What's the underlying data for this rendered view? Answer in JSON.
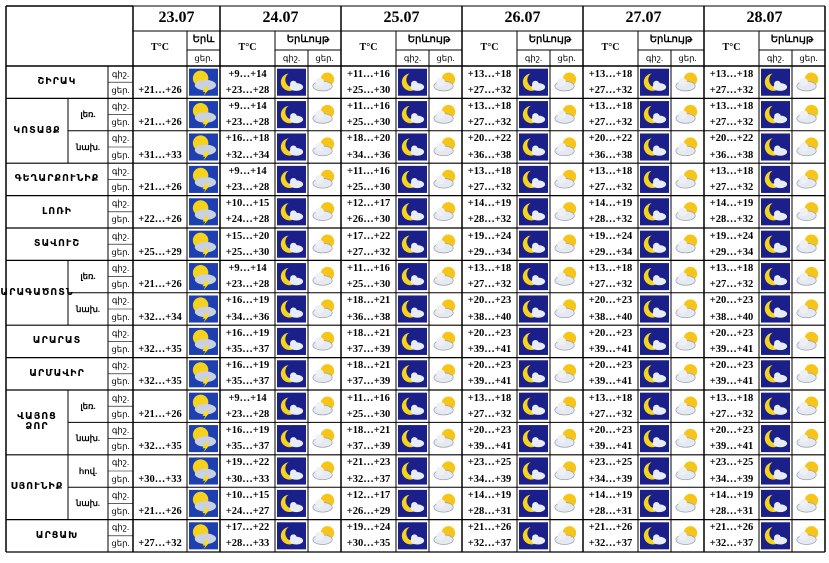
{
  "header": {
    "dates": [
      "23.07",
      "24.07",
      "25.07",
      "26.07",
      "27.07",
      "28.07"
    ],
    "temp_label": "T°C",
    "phenomenon_short": "Երև",
    "phenomenon": "Երևույթ",
    "night": "գիշ.",
    "day": "ցեր."
  },
  "regions": [
    {
      "name": "ՇԻՐԱԿ",
      "rows": [
        {
          "first": "+21…+26",
          "days": [
            {
              "night": "+9…+14",
              "day": "+23…+28"
            },
            {
              "night": "+11…+16",
              "day": "+25…+30"
            },
            {
              "night": "+13…+18",
              "day": "+27…+32"
            },
            {
              "night": "+13…+18",
              "day": "+27…+32"
            },
            {
              "night": "+13…+18",
              "day": "+27…+32"
            }
          ]
        }
      ]
    },
    {
      "name": "ԿՈՏԱՅՔ",
      "rows": [
        {
          "zone": "լեռ.",
          "first": "+21…+26",
          "days": [
            {
              "night": "+9…+14",
              "day": "+23…+28"
            },
            {
              "night": "+11…+16",
              "day": "+25…+30"
            },
            {
              "night": "+13…+18",
              "day": "+27…+32"
            },
            {
              "night": "+13…+18",
              "day": "+27…+32"
            },
            {
              "night": "+13…+18",
              "day": "+27…+32"
            }
          ]
        },
        {
          "zone": "նախ.",
          "first": "+31…+33",
          "days": [
            {
              "night": "+16…+18",
              "day": "+32…+34"
            },
            {
              "night": "+18…+20",
              "day": "+34…+36"
            },
            {
              "night": "+20…+22",
              "day": "+36…+38"
            },
            {
              "night": "+20…+22",
              "day": "+36…+38"
            },
            {
              "night": "+20…+22",
              "day": "+36…+38"
            }
          ]
        }
      ]
    },
    {
      "name": "ԳԵՂԱՐՔՈՒՆԻՔ",
      "rows": [
        {
          "first": "+21…+26",
          "days": [
            {
              "night": "+9…+14",
              "day": "+23…+28"
            },
            {
              "night": "+11…+16",
              "day": "+25…+30"
            },
            {
              "night": "+13…+18",
              "day": "+27…+32"
            },
            {
              "night": "+13…+18",
              "day": "+27…+32"
            },
            {
              "night": "+13…+18",
              "day": "+27…+32"
            }
          ]
        }
      ]
    },
    {
      "name": "ԼՈՌԻ",
      "rows": [
        {
          "first": "+22…+26",
          "days": [
            {
              "night": "+10…+15",
              "day": "+24…+28"
            },
            {
              "night": "+12…+17",
              "day": "+26…+30"
            },
            {
              "night": "+14…+19",
              "day": "+28…+32"
            },
            {
              "night": "+14…+19",
              "day": "+28…+32"
            },
            {
              "night": "+14…+19",
              "day": "+28…+32"
            }
          ]
        }
      ]
    },
    {
      "name": "ՏԱՎՈՒՇ",
      "rows": [
        {
          "first": "+25…+29",
          "days": [
            {
              "night": "+15…+20",
              "day": "+25…+30"
            },
            {
              "night": "+17…+22",
              "day": "+27…+32"
            },
            {
              "night": "+19…+24",
              "day": "+29…+34"
            },
            {
              "night": "+19…+24",
              "day": "+29…+34"
            },
            {
              "night": "+19…+24",
              "day": "+29…+34"
            }
          ]
        }
      ]
    },
    {
      "name": "ԱՐԱԳԱԾՈՏՆ",
      "rows": [
        {
          "zone": "լեռ.",
          "first": "+21…+26",
          "days": [
            {
              "night": "+9…+14",
              "day": "+23…+28"
            },
            {
              "night": "+11…+16",
              "day": "+25…+30"
            },
            {
              "night": "+13…+18",
              "day": "+27…+32"
            },
            {
              "night": "+13…+18",
              "day": "+27…+32"
            },
            {
              "night": "+13…+18",
              "day": "+27…+32"
            }
          ]
        },
        {
          "zone": "նախ.",
          "first": "+32…+34",
          "days": [
            {
              "night": "+16…+19",
              "day": "+34…+36"
            },
            {
              "night": "+18…+21",
              "day": "+36…+38"
            },
            {
              "night": "+20…+23",
              "day": "+38…+40"
            },
            {
              "night": "+20…+23",
              "day": "+38…+40"
            },
            {
              "night": "+20…+23",
              "day": "+38…+40"
            }
          ]
        }
      ]
    },
    {
      "name": "ԱՐԱՐԱՏ",
      "rows": [
        {
          "first": "+32…+35",
          "days": [
            {
              "night": "+16…+19",
              "day": "+35…+37"
            },
            {
              "night": "+18…+21",
              "day": "+37…+39"
            },
            {
              "night": "+20…+23",
              "day": "+39…+41"
            },
            {
              "night": "+20…+23",
              "day": "+39…+41"
            },
            {
              "night": "+20…+23",
              "day": "+39…+41"
            }
          ]
        }
      ]
    },
    {
      "name": "ԱՐՄԱՎԻՐ",
      "rows": [
        {
          "first": "+32…+35",
          "days": [
            {
              "night": "+16…+19",
              "day": "+35…+37"
            },
            {
              "night": "+18…+21",
              "day": "+37…+39"
            },
            {
              "night": "+20…+23",
              "day": "+39…+41"
            },
            {
              "night": "+20…+23",
              "day": "+39…+41"
            },
            {
              "night": "+20…+23",
              "day": "+39…+41"
            }
          ]
        }
      ]
    },
    {
      "name": "ՎԱՅՈՑ ՁՈՐ",
      "rows": [
        {
          "zone": "լեռ.",
          "first": "+21…+26",
          "days": [
            {
              "night": "+9…+14",
              "day": "+23…+28"
            },
            {
              "night": "+11…+16",
              "day": "+25…+30"
            },
            {
              "night": "+13…+18",
              "day": "+27…+32"
            },
            {
              "night": "+13…+18",
              "day": "+27…+32"
            },
            {
              "night": "+13…+18",
              "day": "+27…+32"
            }
          ]
        },
        {
          "zone": "նախ.",
          "first": "+32…+35",
          "days": [
            {
              "night": "+16…+19",
              "day": "+35…+37"
            },
            {
              "night": "+18…+21",
              "day": "+37…+39"
            },
            {
              "night": "+20…+23",
              "day": "+39…+41"
            },
            {
              "night": "+20…+23",
              "day": "+39…+41"
            },
            {
              "night": "+20…+23",
              "day": "+39…+41"
            }
          ]
        }
      ]
    },
    {
      "name": "ՍՅՈՒՆԻՔ",
      "rows": [
        {
          "zone": "հով.",
          "first": "+30…+33",
          "days": [
            {
              "night": "+19…+22",
              "day": "+30…+33"
            },
            {
              "night": "+21…+23",
              "day": "+32…+37"
            },
            {
              "night": "+23…+25",
              "day": "+34…+39"
            },
            {
              "night": "+23…+25",
              "day": "+34…+39"
            },
            {
              "night": "+23…+25",
              "day": "+34…+39"
            }
          ]
        },
        {
          "zone": "նախ.",
          "first": "+21…+26",
          "days": [
            {
              "night": "+10…+15",
              "day": "+24…+27"
            },
            {
              "night": "+12…+17",
              "day": "+26…+29"
            },
            {
              "night": "+14…+19",
              "day": "+28…+31"
            },
            {
              "night": "+14…+19",
              "day": "+28…+31"
            },
            {
              "night": "+14…+19",
              "day": "+28…+31"
            }
          ]
        }
      ]
    },
    {
      "name": "ԱՐՑԱԽ",
      "rows": [
        {
          "first": "+27…+32",
          "days": [
            {
              "night": "+17…+22",
              "day": "+28…+33"
            },
            {
              "night": "+19…+24",
              "day": "+30…+35"
            },
            {
              "night": "+21…+26",
              "day": "+32…+37"
            },
            {
              "night": "+21…+26",
              "day": "+32…+37"
            },
            {
              "night": "+21…+26",
              "day": "+32…+37"
            }
          ]
        }
      ]
    }
  ]
}
